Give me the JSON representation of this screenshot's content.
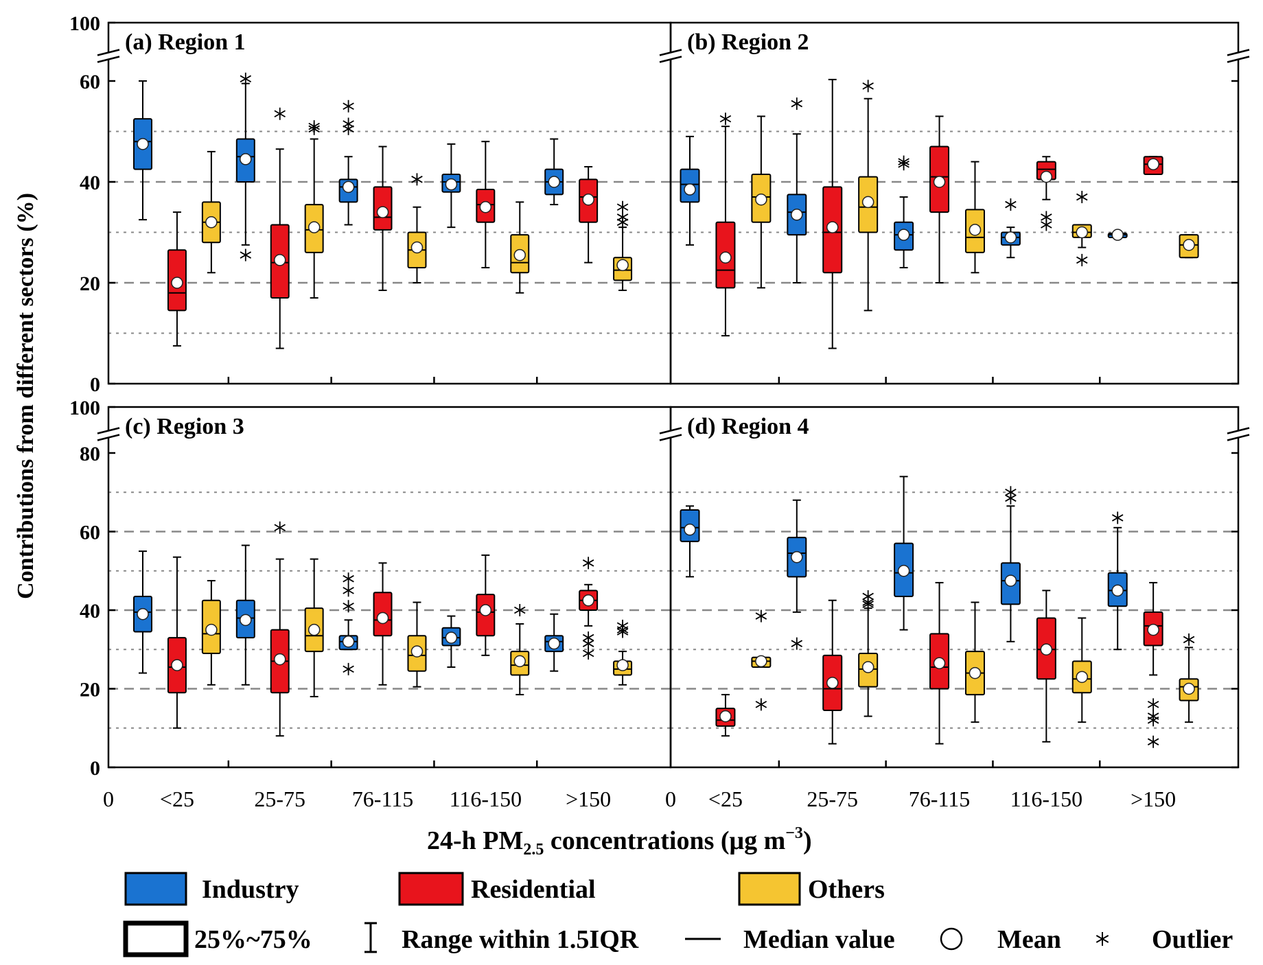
{
  "y_axis_label": "Contributions from different sectors (%)",
  "x_axis_label": "24-h PM",
  "x_axis_label_sub": "2.5",
  "x_axis_label_tail": " concentrations  (μg m",
  "x_axis_label_exp": "−3",
  "x_axis_label_close": ")",
  "x_zero_label": "0",
  "legend": {
    "industry": "Industry",
    "residential": "Residential",
    "others": "Others",
    "iqr_box": "25%~75%",
    "whisker": "Range within 1.5IQR",
    "median": "Median value",
    "mean": "Mean",
    "outlier": "Outlier"
  },
  "colors": {
    "industry": "#1a73d1",
    "residential": "#e8141c",
    "others": "#f5c531"
  },
  "chart_data": [
    {
      "type": "box",
      "title": "(a) Region 1",
      "categories": [
        "<25",
        "25-75",
        "76-115",
        "116-150",
        ">150"
      ],
      "ylim": [
        0,
        100
      ],
      "y_broken_above": 60,
      "yticks": [
        0,
        20,
        40,
        60,
        100
      ],
      "series": [
        {
          "name": "Industry",
          "boxes": [
            {
              "wlo": 32.5,
              "q1": 42.5,
              "med": 48,
              "q3": 52.5,
              "whi": 60,
              "mean": 47.5,
              "outliers": []
            },
            {
              "wlo": 27.5,
              "q1": 40,
              "med": 45,
              "q3": 48.5,
              "whi": 59.5,
              "mean": 44.5,
              "outliers": [
                61.5,
                25.5
              ]
            },
            {
              "wlo": 31.5,
              "q1": 36,
              "med": 39,
              "q3": 40.5,
              "whi": 45,
              "mean": 39,
              "outliers": [
                55,
                51.5,
                50.5
              ]
            },
            {
              "wlo": 31,
              "q1": 38,
              "med": 40,
              "q3": 41.5,
              "whi": 47.5,
              "mean": 39.5,
              "outliers": []
            },
            {
              "wlo": 35.5,
              "q1": 37.5,
              "med": 40,
              "q3": 42.5,
              "whi": 48.5,
              "mean": 40,
              "outliers": []
            }
          ]
        },
        {
          "name": "Residential",
          "boxes": [
            {
              "wlo": 7.5,
              "q1": 14.5,
              "med": 18,
              "q3": 26.5,
              "whi": 34,
              "mean": 20,
              "outliers": []
            },
            {
              "wlo": 7,
              "q1": 17,
              "med": 24,
              "q3": 31.5,
              "whi": 46.5,
              "mean": 24.5,
              "outliers": [
                53.5
              ]
            },
            {
              "wlo": 18.5,
              "q1": 30.5,
              "med": 33,
              "q3": 39,
              "whi": 47,
              "mean": 34,
              "outliers": []
            },
            {
              "wlo": 23,
              "q1": 32,
              "med": 35.5,
              "q3": 38.5,
              "whi": 48,
              "mean": 35,
              "outliers": []
            },
            {
              "wlo": 24,
              "q1": 32,
              "med": 37,
              "q3": 40.5,
              "whi": 43,
              "mean": 36.5,
              "outliers": []
            }
          ]
        },
        {
          "name": "Others",
          "boxes": [
            {
              "wlo": 22,
              "q1": 28,
              "med": 32,
              "q3": 36,
              "whi": 46,
              "mean": 32,
              "outliers": []
            },
            {
              "wlo": 17,
              "q1": 26,
              "med": 30.5,
              "q3": 35.5,
              "whi": 48.5,
              "mean": 31,
              "outliers": [
                50.5,
                51
              ]
            },
            {
              "wlo": 20,
              "q1": 23,
              "med": 26.5,
              "q3": 30,
              "whi": 35,
              "mean": 27,
              "outliers": [
                40.5
              ]
            },
            {
              "wlo": 18,
              "q1": 22,
              "med": 24,
              "q3": 29.5,
              "whi": 36,
              "mean": 25.5,
              "outliers": []
            },
            {
              "wlo": 18.5,
              "q1": 20.5,
              "med": 22.5,
              "q3": 25,
              "whi": 31,
              "mean": 23.5,
              "outliers": [
                35,
                33,
                32
              ]
            }
          ]
        }
      ]
    },
    {
      "type": "box",
      "title": "(b) Region 2",
      "categories": [
        "<25",
        "25-75",
        "76-115",
        "116-150",
        ">150"
      ],
      "ylim": [
        0,
        100
      ],
      "y_broken_above": 60,
      "yticks": [
        0,
        20,
        40,
        60,
        100
      ],
      "series": [
        {
          "name": "Industry",
          "boxes": [
            {
              "wlo": 27.5,
              "q1": 36,
              "med": 39.5,
              "q3": 42.5,
              "whi": 49,
              "mean": 38.5,
              "outliers": []
            },
            {
              "wlo": 20,
              "q1": 29.5,
              "med": 34,
              "q3": 37.5,
              "whi": 49.5,
              "mean": 33.5,
              "outliers": [
                55.5
              ]
            },
            {
              "wlo": 23,
              "q1": 26.5,
              "med": 29.5,
              "q3": 32,
              "whi": 37,
              "mean": 29.5,
              "outliers": [
                44,
                43.5
              ]
            },
            {
              "wlo": 25,
              "q1": 27.5,
              "med": 29,
              "q3": 30,
              "whi": 31,
              "mean": 29,
              "outliers": [
                35.5
              ]
            },
            {
              "wlo": 29,
              "q1": 29,
              "med": 29.5,
              "q3": 29.8,
              "whi": 29.8,
              "mean": 29.5,
              "outliers": []
            }
          ]
        },
        {
          "name": "Residential",
          "boxes": [
            {
              "wlo": 9.5,
              "q1": 19,
              "med": 22.5,
              "q3": 32,
              "whi": 51,
              "mean": 25,
              "outliers": [
                52.5
              ]
            },
            {
              "wlo": 7,
              "q1": 22,
              "med": 30,
              "q3": 39,
              "whi": 61,
              "mean": 31,
              "outliers": []
            },
            {
              "wlo": 20,
              "q1": 34,
              "med": 41,
              "q3": 47,
              "whi": 53,
              "mean": 40,
              "outliers": []
            },
            {
              "wlo": 36.5,
              "q1": 40.5,
              "med": 42.5,
              "q3": 44,
              "whi": 45,
              "mean": 41,
              "outliers": [
                33,
                31.5
              ]
            },
            {
              "wlo": 41.5,
              "q1": 41.5,
              "med": 43.5,
              "q3": 45,
              "whi": 45,
              "mean": 43.5,
              "outliers": []
            }
          ]
        },
        {
          "name": "Others",
          "boxes": [
            {
              "wlo": 19,
              "q1": 32,
              "med": 37,
              "q3": 41.5,
              "whi": 53,
              "mean": 36.5,
              "outliers": []
            },
            {
              "wlo": 14.5,
              "q1": 30,
              "med": 35,
              "q3": 41,
              "whi": 56.5,
              "mean": 36,
              "outliers": [
                59
              ]
            },
            {
              "wlo": 22,
              "q1": 26,
              "med": 29,
              "q3": 34.5,
              "whi": 44,
              "mean": 30.5,
              "outliers": []
            },
            {
              "wlo": 27,
              "q1": 29,
              "med": 30,
              "q3": 31.5,
              "whi": 31.5,
              "mean": 30,
              "outliers": [
                37,
                24.5
              ]
            },
            {
              "wlo": 25,
              "q1": 25,
              "med": 27.5,
              "q3": 29.5,
              "whi": 29.5,
              "mean": 27.5,
              "outliers": []
            }
          ]
        }
      ]
    },
    {
      "type": "box",
      "title": "(c) Region 3",
      "categories": [
        "<25",
        "25-75",
        "76-115",
        "116-150",
        ">150"
      ],
      "ylim": [
        0,
        100
      ],
      "y_broken_above": 80,
      "yticks": [
        0,
        20,
        40,
        60,
        80,
        100
      ],
      "series": [
        {
          "name": "Industry",
          "boxes": [
            {
              "wlo": 24,
              "q1": 34.5,
              "med": 39.5,
              "q3": 43.5,
              "whi": 55,
              "mean": 39,
              "outliers": []
            },
            {
              "wlo": 21,
              "q1": 33,
              "med": 38,
              "q3": 42.5,
              "whi": 56.5,
              "mean": 37.5,
              "outliers": []
            },
            {
              "wlo": 30,
              "q1": 30,
              "med": 32,
              "q3": 33.5,
              "whi": 37.5,
              "mean": 32,
              "outliers": [
                48,
                45,
                41,
                25
              ]
            },
            {
              "wlo": 25.5,
              "q1": 31,
              "med": 33,
              "q3": 35.5,
              "whi": 38.5,
              "mean": 33,
              "outliers": []
            },
            {
              "wlo": 24.5,
              "q1": 29.5,
              "med": 32,
              "q3": 33.5,
              "whi": 39,
              "mean": 31.5,
              "outliers": []
            }
          ]
        },
        {
          "name": "Residential",
          "boxes": [
            {
              "wlo": 10,
              "q1": 19,
              "med": 25.5,
              "q3": 33,
              "whi": 53.5,
              "mean": 26,
              "outliers": []
            },
            {
              "wlo": 8,
              "q1": 19,
              "med": 27,
              "q3": 35,
              "whi": 53,
              "mean": 27.5,
              "outliers": [
                61
              ]
            },
            {
              "wlo": 21,
              "q1": 33.5,
              "med": 37.5,
              "q3": 44.5,
              "whi": 52,
              "mean": 38,
              "outliers": []
            },
            {
              "wlo": 28.5,
              "q1": 33.5,
              "med": 39.5,
              "q3": 44,
              "whi": 54,
              "mean": 40,
              "outliers": []
            },
            {
              "wlo": 36,
              "q1": 40,
              "med": 42.5,
              "q3": 45,
              "whi": 46.5,
              "mean": 42.5,
              "outliers": [
                52,
                33,
                31.5,
                29
              ]
            }
          ]
        },
        {
          "name": "Others",
          "boxes": [
            {
              "wlo": 21,
              "q1": 29,
              "med": 34,
              "q3": 42.5,
              "whi": 47.5,
              "mean": 35,
              "outliers": []
            },
            {
              "wlo": 18,
              "q1": 29.5,
              "med": 33.5,
              "q3": 40.5,
              "whi": 53,
              "mean": 35,
              "outliers": []
            },
            {
              "wlo": 20.5,
              "q1": 24.5,
              "med": 28.5,
              "q3": 33.5,
              "whi": 42,
              "mean": 29.5,
              "outliers": []
            },
            {
              "wlo": 18.5,
              "q1": 23.5,
              "med": 26,
              "q3": 29.5,
              "whi": 36.5,
              "mean": 27,
              "outliers": [
                40
              ]
            },
            {
              "wlo": 21,
              "q1": 23.5,
              "med": 25,
              "q3": 27,
              "whi": 29.5,
              "mean": 26,
              "outliers": [
                36,
                35,
                34.5
              ]
            }
          ]
        }
      ]
    },
    {
      "type": "box",
      "title": "(d) Region 4",
      "categories": [
        "<25",
        "25-75",
        "76-115",
        "116-150",
        ">150"
      ],
      "ylim": [
        0,
        100
      ],
      "y_broken_above": 80,
      "yticks": [
        0,
        20,
        40,
        60,
        80,
        100
      ],
      "series": [
        {
          "name": "Industry",
          "boxes": [
            {
              "wlo": 48.5,
              "q1": 57.5,
              "med": 61,
              "q3": 65.5,
              "whi": 66.5,
              "mean": 60.5,
              "outliers": []
            },
            {
              "wlo": 39.5,
              "q1": 48.5,
              "med": 54.5,
              "q3": 58.5,
              "whi": 68,
              "mean": 53.5,
              "outliers": [
                31.5
              ]
            },
            {
              "wlo": 35,
              "q1": 43.5,
              "med": 49.5,
              "q3": 57,
              "whi": 74,
              "mean": 50,
              "outliers": []
            },
            {
              "wlo": 32,
              "q1": 41.5,
              "med": 47.5,
              "q3": 52,
              "whi": 66.5,
              "mean": 47.5,
              "outliers": [
                70,
                68.5
              ]
            },
            {
              "wlo": 30,
              "q1": 41,
              "med": 45,
              "q3": 49.5,
              "whi": 61,
              "mean": 45,
              "outliers": [
                63.5
              ]
            }
          ]
        },
        {
          "name": "Residential",
          "boxes": [
            {
              "wlo": 8,
              "q1": 10.5,
              "med": 12,
              "q3": 15,
              "whi": 18.5,
              "mean": 13,
              "outliers": []
            },
            {
              "wlo": 6,
              "q1": 14.5,
              "med": 20,
              "q3": 28.5,
              "whi": 42.5,
              "mean": 21.5,
              "outliers": []
            },
            {
              "wlo": 6,
              "q1": 20,
              "med": 25.5,
              "q3": 34,
              "whi": 47,
              "mean": 26.5,
              "outliers": []
            },
            {
              "wlo": 6.5,
              "q1": 22.5,
              "med": 30,
              "q3": 38,
              "whi": 45,
              "mean": 30,
              "outliers": []
            },
            {
              "wlo": 23.5,
              "q1": 31,
              "med": 36,
              "q3": 39.5,
              "whi": 47,
              "mean": 35,
              "outliers": [
                16,
                13,
                12,
                6.5
              ]
            }
          ]
        },
        {
          "name": "Others",
          "boxes": [
            {
              "wlo": 25.5,
              "q1": 25.5,
              "med": 27,
              "q3": 28,
              "whi": 28,
              "mean": 27,
              "outliers": [
                38.5,
                16
              ]
            },
            {
              "wlo": 13,
              "q1": 20.5,
              "med": 25,
              "q3": 29,
              "whi": 40.5,
              "mean": 25.5,
              "outliers": [
                43.5,
                42,
                41.5
              ]
            },
            {
              "wlo": 11.5,
              "q1": 18.5,
              "med": 24,
              "q3": 29.5,
              "whi": 42,
              "mean": 24,
              "outliers": []
            },
            {
              "wlo": 11.5,
              "q1": 19,
              "med": 22.5,
              "q3": 27,
              "whi": 38,
              "mean": 23,
              "outliers": []
            },
            {
              "wlo": 11.5,
              "q1": 17,
              "med": 20.5,
              "q3": 22.5,
              "whi": 30.5,
              "mean": 20,
              "outliers": [
                32.5
              ]
            }
          ]
        }
      ]
    }
  ]
}
